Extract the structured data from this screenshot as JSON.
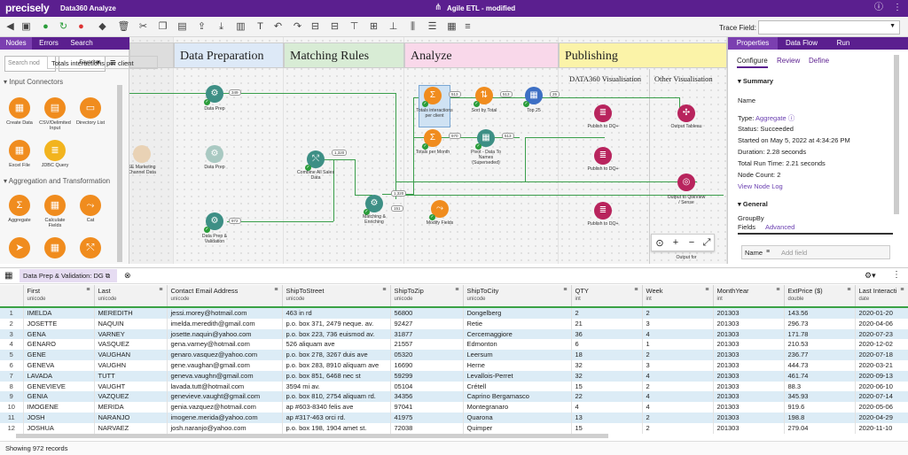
{
  "app": {
    "brand": "precisely",
    "product": "Data360 Analyze",
    "project": "Agile ETL - modified"
  },
  "toolbar": {
    "trace_label": "Trace Field:",
    "trace_value": ""
  },
  "left": {
    "tabs": [
      "Nodes",
      "Errors",
      "Search"
    ],
    "search_placeholder": "Search nod",
    "filter": "Favorites",
    "sections": [
      "Input Connectors",
      "Aggregation and Transformation"
    ],
    "input_tools": [
      {
        "label": "Create Data",
        "icon": "grid-icon"
      },
      {
        "label": "CSV/Delimited Input",
        "icon": "csv-icon"
      },
      {
        "label": "Directory List",
        "icon": "folder-icon"
      },
      {
        "label": "Excel File",
        "icon": "excel-icon"
      },
      {
        "label": "JDBC Query",
        "icon": "database-icon"
      }
    ],
    "agg_tools": [
      {
        "label": "Aggregate",
        "icon": "sigma-icon"
      },
      {
        "label": "Calculate Fields",
        "icon": "calculator-icon"
      },
      {
        "label": "Cat",
        "icon": "cat-icon"
      }
    ]
  },
  "canvas": {
    "lanes": [
      {
        "title": "Data Preparation"
      },
      {
        "title": "Matching Rules"
      },
      {
        "title": "Analyze"
      },
      {
        "title": "Publishing"
      }
    ],
    "publish_sub": [
      "DATA360 Visualisation",
      "Other Visualisation"
    ],
    "nodes": [
      {
        "label": "Data Prep",
        "badge": "349"
      },
      {
        "label": "Data Prep",
        "badge": ""
      },
      {
        "label": "Data Prep & Validation",
        "badge": "972"
      },
      {
        "label": "SE Marketing Channel Data",
        "badge": ""
      },
      {
        "label": "Combine All Sales Data",
        "badge": "1,320"
      },
      {
        "label": "Matching & Enriching",
        "badge": "1,320"
      },
      {
        "label": "Totals interactions per client",
        "badge": "513"
      },
      {
        "label": "Sort by Total",
        "badge": "513"
      },
      {
        "label": "Top 25",
        "badge": "25"
      },
      {
        "label": "Totals per Month",
        "badge": "970"
      },
      {
        "label": "Pivot - Data To Names (Superseded)",
        "badge": "513"
      },
      {
        "label": "Modify Fields",
        "badge": ""
      },
      {
        "label": "Publish to DQ+",
        "badge": ""
      },
      {
        "label": "Publish to DQ+",
        "badge": ""
      },
      {
        "label": "Publish to DQ+",
        "badge": ""
      },
      {
        "label": "Output Tableau",
        "badge": ""
      },
      {
        "label": "Output to QlikView / Sense",
        "badge": ""
      },
      {
        "label": "Output for",
        "badge": ""
      }
    ],
    "extra_badge": "151"
  },
  "right": {
    "tabs": [
      "Properties",
      "Data Flow",
      "Run"
    ],
    "subtabs": [
      "Configure",
      "Review",
      "Define"
    ],
    "summary_title": "Summary",
    "name_label": "Name",
    "name_value": "Totals interactions per client",
    "type_label": "Type:",
    "type_value": "Aggregate",
    "status": "Status: Succeeded",
    "started": "Started on May 5, 2022 at 4:34:26 PM",
    "duration": "Duration: 2.28 seconds",
    "total_run": "Total Run Time: 2.21 seconds",
    "node_count": "Node Count: 2",
    "view_log": "View Node Log",
    "general_title": "General",
    "groupby": "GroupBy",
    "fields_label": "Fields",
    "advanced_label": "Advanced",
    "name2": "Name",
    "add_field": "Add field"
  },
  "grid": {
    "tab_label": "Data Prep & Validation: DG",
    "columns": [
      {
        "name": "First",
        "type": "unicode"
      },
      {
        "name": "Last",
        "type": "unicode"
      },
      {
        "name": "Contact Email Address",
        "type": "unicode"
      },
      {
        "name": "ShipToStreet",
        "type": "unicode"
      },
      {
        "name": "ShipToZip",
        "type": "unicode"
      },
      {
        "name": "ShipToCity",
        "type": "unicode"
      },
      {
        "name": "QTY",
        "type": "int"
      },
      {
        "name": "Week",
        "type": "int"
      },
      {
        "name": "MonthYear",
        "type": "int"
      },
      {
        "name": "ExtPrice ($)",
        "type": "double"
      },
      {
        "name": "Last Interacti",
        "type": "date"
      }
    ],
    "rows": [
      [
        "1",
        "IMELDA",
        "MEREDITH",
        "jessi.morey@hotmail.com",
        "463 in rd",
        "56800",
        "Dongelberg",
        "2",
        "2",
        "201303",
        "143.56",
        "2020-01-20"
      ],
      [
        "2",
        "JOSETTE",
        "NAQUIN",
        "imelda.meredith@gmail.com",
        "p.o. box 371, 2479 neque. av.",
        "92427",
        "Retie",
        "21",
        "3",
        "201303",
        "296.73",
        "2020-04-06"
      ],
      [
        "3",
        "GENA",
        "VARNEY",
        "josette.naquin@yahoo.com",
        "p.o. box 223, 736 euismod av.",
        "31877",
        "Cercemaggiore",
        "36",
        "4",
        "201303",
        "171.78",
        "2020-07-23"
      ],
      [
        "4",
        "GENARO",
        "VASQUEZ",
        "gena.varney@hotmail.com",
        "526 aliquam ave",
        "21557",
        "Edmonton",
        "6",
        "1",
        "201303",
        "210.53",
        "2020-12-02"
      ],
      [
        "5",
        "GENE",
        "VAUGHAN",
        "genaro.vasquez@yahoo.com",
        "p.o. box 278, 3267 duis ave",
        "05320",
        "Leersum",
        "18",
        "2",
        "201303",
        "236.77",
        "2020-07-18"
      ],
      [
        "6",
        "GENEVA",
        "VAUGHN",
        "gene.vaughan@gmail.com",
        "p.o. box 283, 8910 aliquam ave",
        "16690",
        "Herne",
        "32",
        "3",
        "201303",
        "444.73",
        "2020-03-21"
      ],
      [
        "7",
        "LAVADA",
        "TUTT",
        "geneva.vaughn@gmail.com",
        "p.o. box 851, 6468 nec st",
        "59299",
        "Levallois-Perret",
        "32",
        "4",
        "201303",
        "461.74",
        "2020-09-13"
      ],
      [
        "8",
        "GENEVIEVE",
        "VAUGHT",
        "lavada.tutt@hotmail.com",
        "3594 mi av.",
        "05104",
        "Crétell",
        "15",
        "2",
        "201303",
        "88.3",
        "2020-06-10"
      ],
      [
        "9",
        "GENIA",
        "VAZQUEZ",
        "genevieve.vaught@gmail.com",
        "p.o. box 810, 2754 aliquam rd.",
        "34356",
        "Caprino Bergamasco",
        "22",
        "4",
        "201303",
        "345.93",
        "2020-07-14"
      ],
      [
        "10",
        "IMOGENE",
        "MERIDA",
        "genia.vazquez@hotmail.com",
        "ap #603-8340 felis ave",
        "97041",
        "Montegranaro",
        "4",
        "4",
        "201303",
        "919.6",
        "2020-05-06"
      ],
      [
        "11",
        "JOSH",
        "NARANJO",
        "imogene.merida@yahoo.com",
        "ap #317-463 orci rd.",
        "41975",
        "Quarona",
        "13",
        "2",
        "201303",
        "198.8",
        "2020-04-29"
      ],
      [
        "12",
        "JOSHUA",
        "NARVAEZ",
        "josh.naranjo@yahoo.com",
        "p.o. box 198, 1904 amet st.",
        "72038",
        "Quimper",
        "15",
        "2",
        "201303",
        "279.04",
        "2020-11-10"
      ]
    ]
  },
  "status": "Showing 972 records"
}
